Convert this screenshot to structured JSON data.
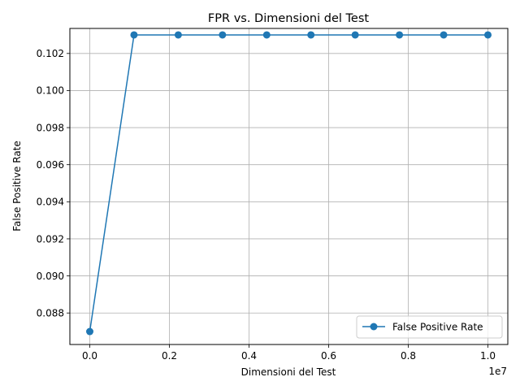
{
  "chart_data": {
    "type": "line",
    "title": "FPR vs. Dimensioni del Test",
    "xlabel": "Dimensioni del Test",
    "ylabel": "False Positive Rate",
    "x_offset_label": "1e7",
    "x_scale": 10000000,
    "xlim": [
      -500000,
      10500000
    ],
    "ylim": [
      0.0863,
      0.10335
    ],
    "x_ticks": [
      0,
      2000000,
      4000000,
      6000000,
      8000000,
      10000000
    ],
    "x_tick_labels": [
      "0.0",
      "0.2",
      "0.4",
      "0.6",
      "0.8",
      "1.0"
    ],
    "y_ticks": [
      0.088,
      0.09,
      0.092,
      0.094,
      0.096,
      0.098,
      0.1,
      0.102
    ],
    "y_tick_labels": [
      "0.088",
      "0.090",
      "0.092",
      "0.094",
      "0.096",
      "0.098",
      "0.100",
      "0.102"
    ],
    "grid": true,
    "legend_position": "lower-right",
    "series": [
      {
        "name": "False Positive Rate",
        "color": "#1f77b4",
        "marker": "circle",
        "x": [
          100,
          1111200,
          2222300,
          3333400,
          4444500,
          5555600,
          6666700,
          7777800,
          8888900,
          10000000
        ],
        "y": [
          0.087,
          0.103,
          0.103,
          0.103,
          0.103,
          0.103,
          0.103,
          0.103,
          0.103,
          0.103
        ]
      }
    ]
  }
}
